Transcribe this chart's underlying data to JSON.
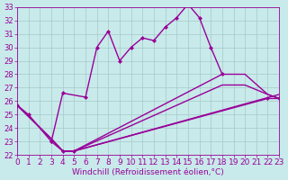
{
  "background_color": "#c8eaea",
  "grid_color": "#a8c8c8",
  "line_color": "#990099",
  "xlim": [
    0,
    23
  ],
  "ylim": [
    22,
    33
  ],
  "xlabel": "Windchill (Refroidissement éolien,°C)",
  "xlabel_fontsize": 6.5,
  "xticks": [
    0,
    1,
    2,
    3,
    4,
    5,
    6,
    7,
    8,
    9,
    10,
    11,
    12,
    13,
    14,
    15,
    16,
    17,
    18,
    19,
    20,
    21,
    22,
    23
  ],
  "yticks": [
    22,
    23,
    24,
    25,
    26,
    27,
    28,
    29,
    30,
    31,
    32,
    33
  ],
  "tick_fontsize": 6,
  "line1_x": [
    0,
    1,
    3,
    4,
    6,
    7,
    8,
    9,
    10,
    11,
    12,
    13,
    14,
    15,
    16,
    17,
    18
  ],
  "line1_y": [
    25.7,
    25.0,
    23.0,
    26.6,
    26.3,
    30.0,
    31.2,
    29.0,
    30.0,
    30.7,
    30.5,
    31.5,
    32.2,
    33.2,
    32.2,
    30.0,
    28.0
  ],
  "line2_x": [
    3,
    4,
    5,
    22,
    23
  ],
  "line2_y": [
    23.0,
    22.3,
    22.3,
    26.2,
    26.2
  ],
  "line3_x": [
    0,
    3,
    4,
    5,
    23
  ],
  "line3_y": [
    25.7,
    23.2,
    22.3,
    22.3,
    26.5
  ],
  "line4_x": [
    0,
    3,
    4,
    5,
    18,
    20,
    22,
    23
  ],
  "line4_y": [
    25.7,
    23.2,
    22.3,
    22.3,
    27.2,
    27.2,
    26.5,
    26.2
  ],
  "line5_x": [
    0,
    3,
    4,
    5,
    18,
    20,
    22,
    23
  ],
  "line5_y": [
    25.7,
    23.2,
    22.3,
    22.3,
    28.0,
    28.0,
    26.5,
    26.2
  ]
}
